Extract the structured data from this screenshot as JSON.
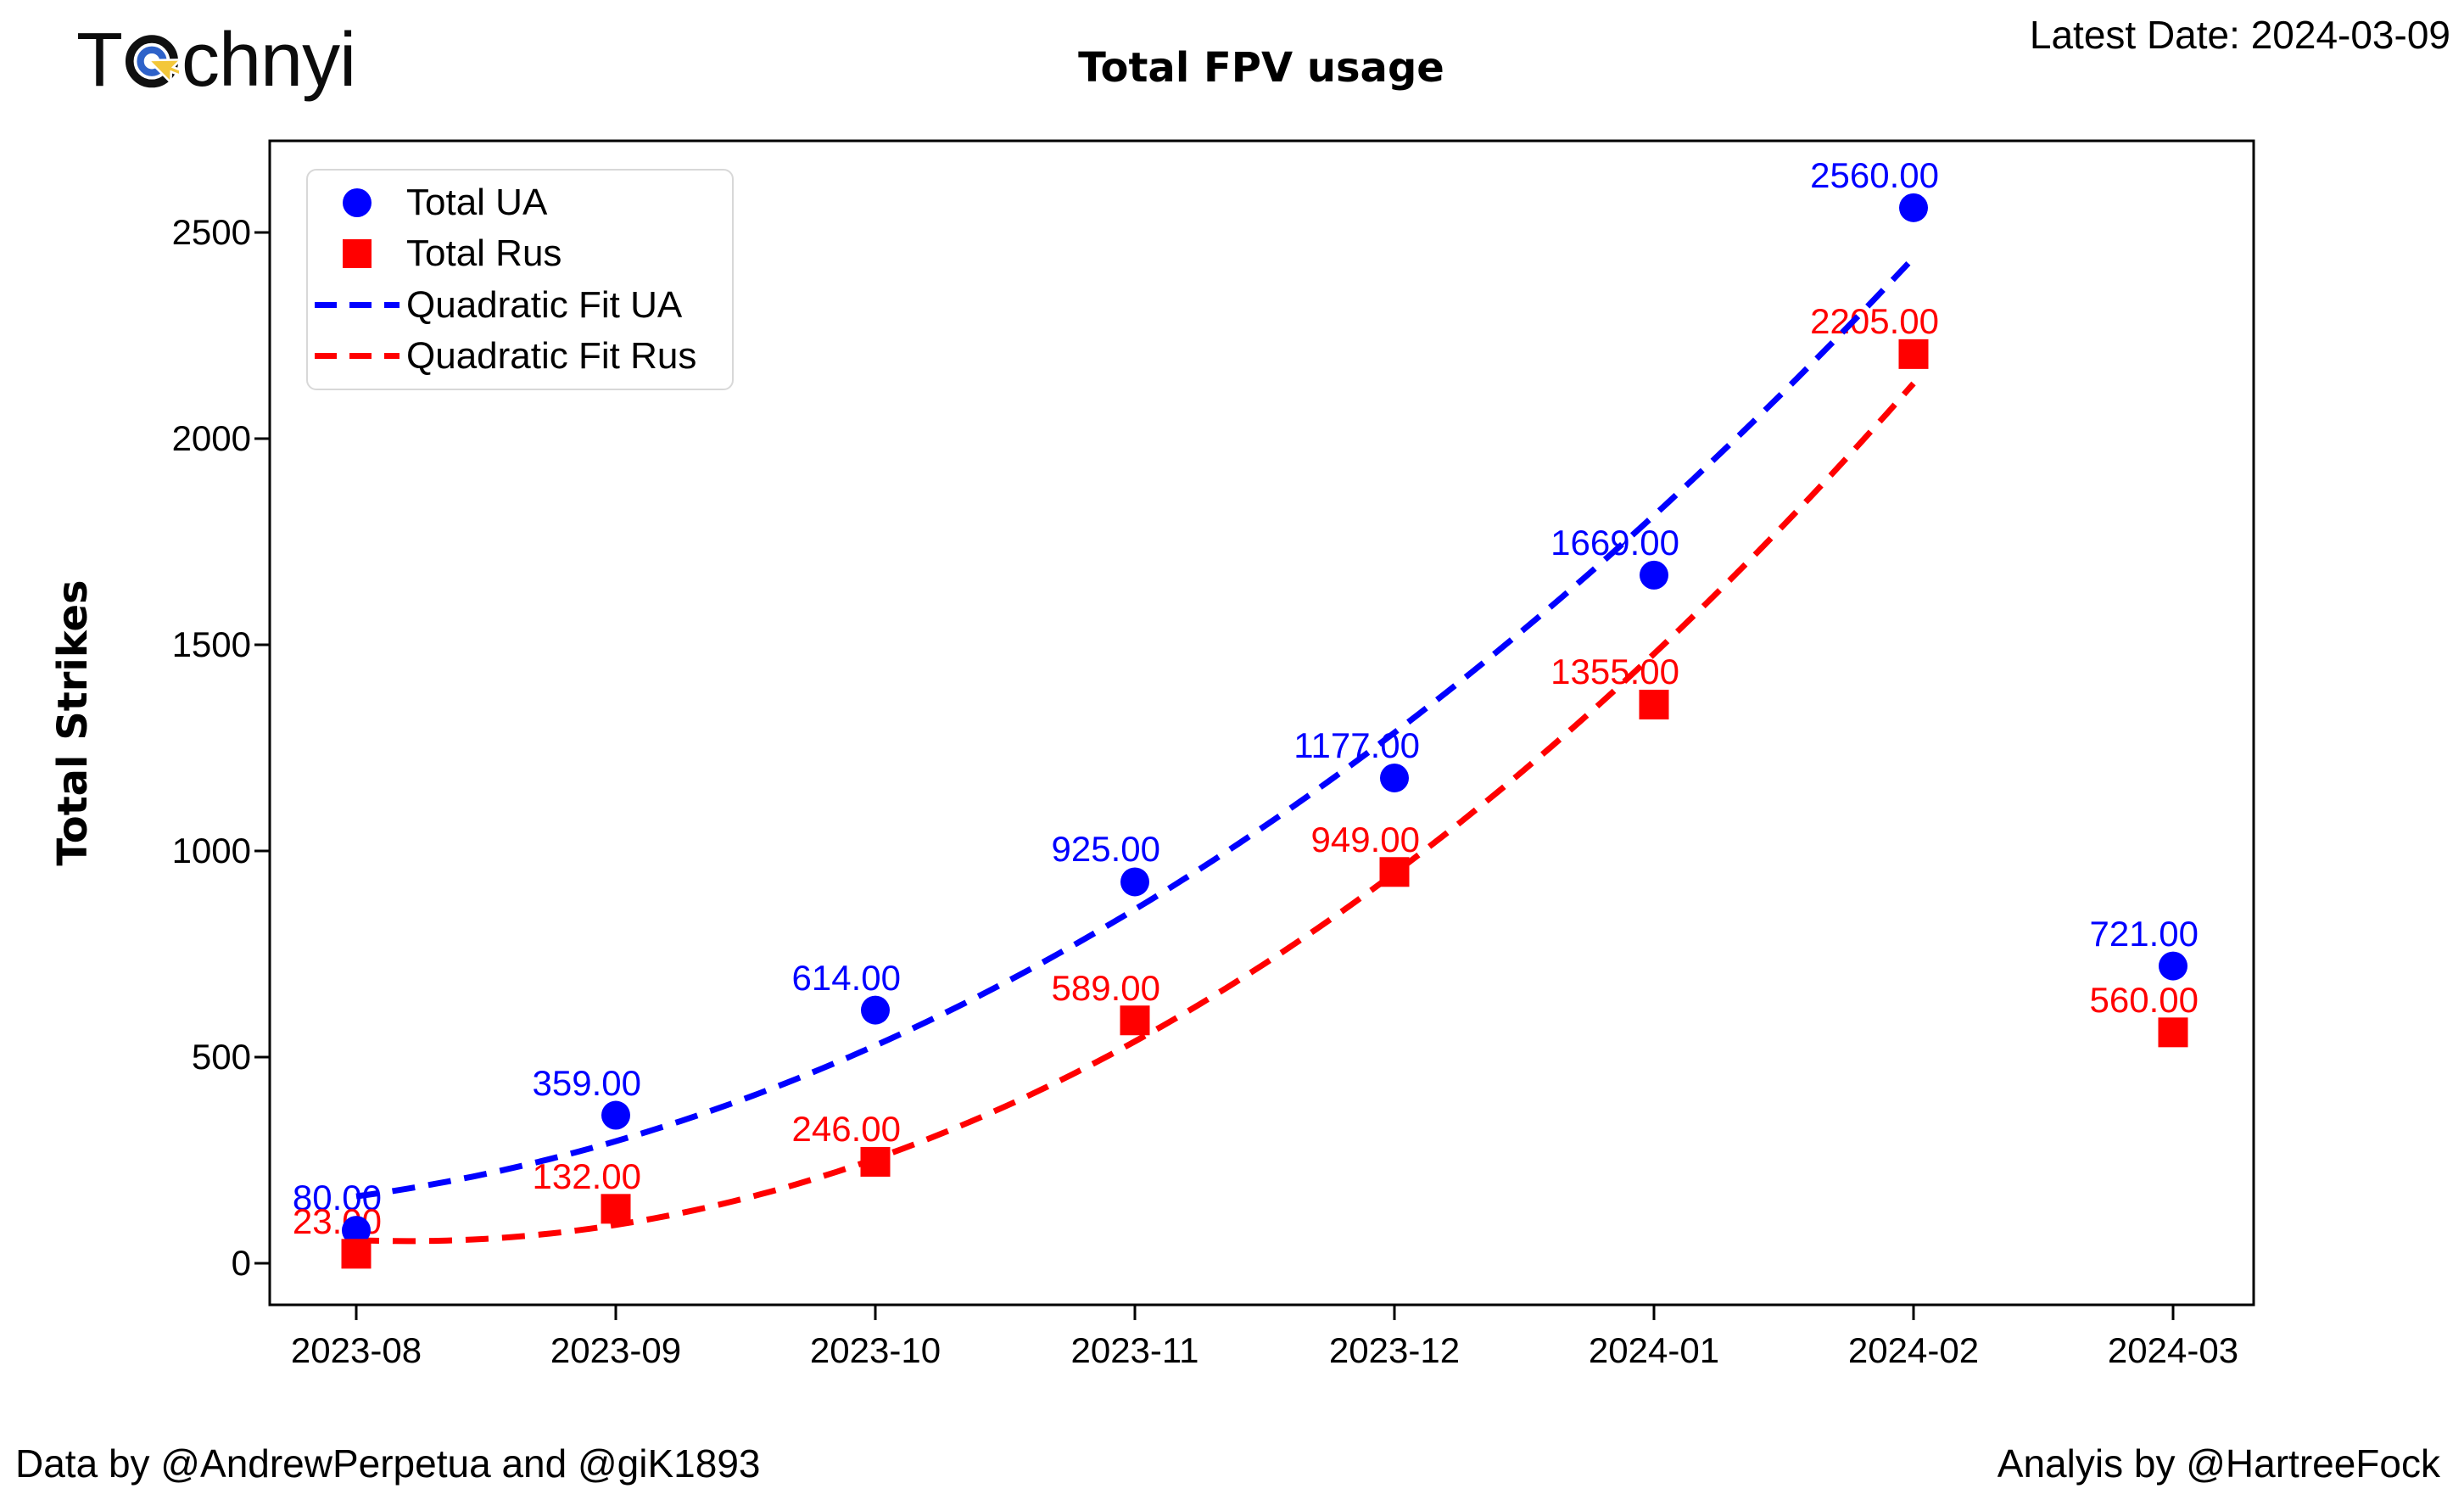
{
  "header": {
    "logo_prefix": "T",
    "logo_suffix": "chnyi",
    "latest_date": "Latest Date: 2024-03-09"
  },
  "chart_data": {
    "type": "scatter",
    "title": "Total FPV usage",
    "xlabel": "",
    "ylabel": "Total Strikes",
    "categories": [
      "2023-08",
      "2023-09",
      "2023-10",
      "2023-11",
      "2023-12",
      "2024-01",
      "2024-02",
      "2024-03"
    ],
    "series": [
      {
        "name": "Total UA",
        "marker": "circle",
        "color": "#0000ff",
        "values": [
          80,
          359,
          614,
          925,
          1177,
          1669,
          2560,
          721
        ],
        "point_labels": [
          "80.00",
          "359.00",
          "614.00",
          "925.00",
          "1177.00",
          "1669.00",
          "2560.00",
          "721.00"
        ]
      },
      {
        "name": "Total Rus",
        "marker": "square",
        "color": "#ff0000",
        "values": [
          23,
          132,
          246,
          589,
          949,
          1355,
          2205,
          560
        ],
        "point_labels": [
          "23.00",
          "132.00",
          "246.00",
          "589.00",
          "949.00",
          "1355.00",
          "2205.00",
          "560.00"
        ]
      }
    ],
    "fit_lines": [
      {
        "name": "Quadratic Fit UA",
        "color": "#0000ff",
        "fit_of_series": 0,
        "points_used": 7,
        "style": "dashed"
      },
      {
        "name": "Quadratic Fit Rus",
        "color": "#ff0000",
        "fit_of_series": 1,
        "points_used": 7,
        "style": "dashed"
      }
    ],
    "yticks": [
      0,
      500,
      1000,
      1500,
      2000,
      2500
    ],
    "ylim": [
      -100,
      2750
    ],
    "grid": false,
    "legend": {
      "position": "upper left",
      "items": [
        {
          "label": "Total UA",
          "marker": "circle",
          "color": "#0000ff"
        },
        {
          "label": "Total Rus",
          "marker": "square",
          "color": "#ff0000"
        },
        {
          "label": "Quadratic Fit UA",
          "marker": "dashed-line",
          "color": "#0000ff"
        },
        {
          "label": "Quadratic Fit Rus",
          "marker": "dashed-line",
          "color": "#ff0000"
        }
      ]
    }
  },
  "footer": {
    "data_credit": "Data by @AndrewPerpetua and @giK1893",
    "analysis_credit": "Analyis by @HartreeFock"
  }
}
